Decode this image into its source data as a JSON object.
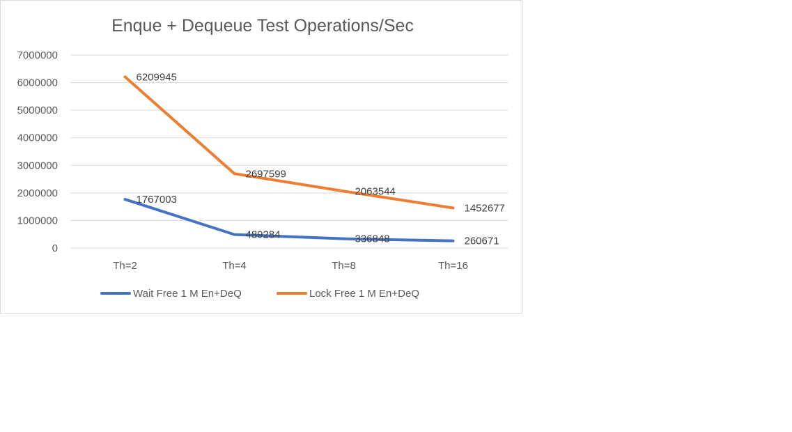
{
  "chart_data": {
    "type": "line",
    "title": "Enque + Dequeue Test Operations/Sec",
    "xlabel": "",
    "ylabel": "",
    "categories": [
      "Th=2",
      "Th=4",
      "Th=8",
      "Th=16"
    ],
    "ylim": [
      0,
      7000000
    ],
    "yticks": [
      "0",
      "1000000",
      "2000000",
      "3000000",
      "4000000",
      "5000000",
      "6000000",
      "7000000"
    ],
    "grid": true,
    "legend_position": "bottom",
    "series": [
      {
        "name": "Wait Free 1 M En+DeQ",
        "color": "#4472C4",
        "values": [
          1767003,
          489284,
          336848,
          260671
        ]
      },
      {
        "name": "Lock Free 1 M En+DeQ",
        "color": "#ED7D31",
        "values": [
          6209945,
          2697599,
          2063544,
          1452677
        ]
      }
    ]
  }
}
